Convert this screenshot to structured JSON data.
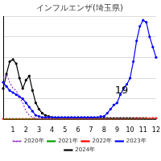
{
  "chart_data": {
    "type": "line",
    "title": "インフルエンザ(埼玉県)",
    "categories": [
      null,
      null,
      null,
      "1",
      null,
      null,
      null,
      "2",
      null,
      null,
      null,
      "3",
      null,
      null,
      null,
      "4",
      null,
      null,
      null,
      "5",
      null,
      null,
      null,
      "6",
      null,
      null,
      null,
      "7",
      null,
      null,
      null,
      "8",
      null,
      null,
      null,
      "9",
      null,
      null,
      null,
      "10",
      null,
      null,
      null,
      "11",
      null,
      null,
      null,
      "12"
    ],
    "series": [
      {
        "name": "2020年",
        "color": "#9933cc",
        "line_style": "dotted",
        "marker": "none",
        "values": [
          20,
          22,
          18,
          15,
          14,
          11,
          8,
          4,
          2,
          1,
          0.5,
          0.3,
          0.2,
          0.1,
          0.1,
          0.1,
          0.1,
          0.1,
          0.1,
          0.1,
          0.1,
          0.1,
          0.1,
          0.1,
          0.1,
          0.1,
          0.1,
          0.1,
          0.1,
          0.1,
          0.1,
          0.1,
          0.1,
          0.1,
          0.1,
          0.1,
          0.1,
          0.1,
          0.1,
          0.1,
          0.1,
          0.1,
          0.1,
          0.1,
          0.1,
          0.1,
          0.1,
          0.1
        ]
      },
      {
        "name": "2021年",
        "color": "#00a000",
        "line_style": "solid",
        "marker": "none",
        "values": [
          0.1,
          0.1,
          0.1,
          0.1,
          0.1,
          0.1,
          0.1,
          0.1,
          0.1,
          0.1,
          0.1,
          0.1,
          0.1,
          0.1,
          0.1,
          0.1,
          0.1,
          0.1,
          0.1,
          0.1,
          0.1,
          0.1,
          0.1,
          0.1,
          0.1,
          0.1,
          0.1,
          0.1,
          0.1,
          0.1,
          0.1,
          0.1,
          0.1,
          0.1,
          0.1,
          0.1,
          0.1,
          0.1,
          0.1,
          0.1,
          0.1,
          0.1,
          0.1,
          0.1,
          0.1,
          0.1,
          0.1,
          0.1
        ]
      },
      {
        "name": "2022年",
        "color": "#ff0000",
        "line_style": "solid",
        "marker": "circle",
        "values": [
          0.1,
          0.1,
          0.1,
          0.1,
          0.1,
          0.1,
          0.1,
          0.1,
          0.1,
          0.1,
          0.1,
          0.1,
          0.1,
          0.1,
          0.1,
          0.1,
          0.1,
          0.1,
          0.1,
          0.1,
          0.1,
          0.1,
          0.1,
          0.1,
          0.1,
          0.1,
          0.1,
          0.1,
          0.1,
          0.1,
          0.1,
          0.1,
          0.1,
          0.1,
          0.1,
          0.1,
          0.1,
          0.1,
          0.1,
          0.1,
          0.2,
          0.2,
          0.3,
          0.3,
          0.4,
          0.4,
          0.5,
          0.5
        ]
      },
      {
        "name": "2023年",
        "color": "#0000ff",
        "line_style": "solid",
        "marker": "circle",
        "values": [
          18,
          16,
          14,
          13,
          12,
          11,
          10,
          8,
          6,
          4,
          2,
          1.5,
          1,
          1,
          1,
          1,
          1,
          1,
          1,
          1,
          1,
          1,
          1,
          1,
          1,
          1,
          1,
          1,
          1,
          1,
          1.5,
          1.5,
          3,
          5,
          7,
          8,
          12,
          15,
          17,
          20,
          28,
          38,
          45,
          48,
          47,
          40,
          35,
          30
        ]
      },
      {
        "name": "2024年",
        "color": "#000000",
        "line_style": "solid",
        "marker": "circle",
        "values": [
          15,
          22,
          28,
          29,
          27,
          20,
          15,
          19,
          21,
          14,
          8,
          5,
          3,
          2,
          1.5,
          1,
          0.8,
          0.6,
          0.5,
          0.5,
          0.5,
          0.5,
          0.5,
          0.5,
          0.5,
          0.5,
          0.5,
          0.5,
          0.5,
          0.5,
          0.5,
          0.5,
          0.5,
          0.5,
          0.5,
          0.5,
          0.5,
          0.5,
          0.5,
          0.5,
          0.5,
          0.5,
          0.5,
          0.5,
          0.5,
          null,
          null,
          null
        ]
      }
    ],
    "annotations": [
      "19"
    ],
    "ylim": [
      0,
      50
    ],
    "yticks": [
      0,
      10,
      20,
      30,
      40,
      50
    ],
    "grid": true,
    "legend": "bottom",
    "tick_labels": "x"
  }
}
